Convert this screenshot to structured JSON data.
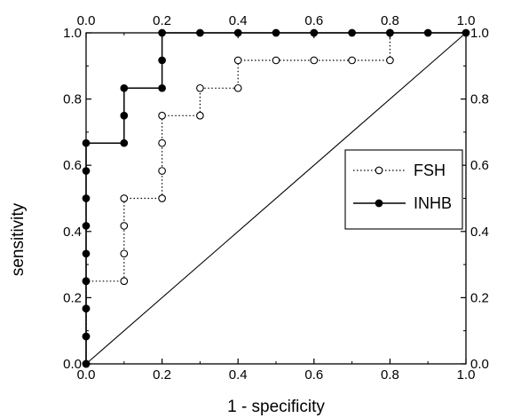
{
  "chart_data": {
    "type": "line",
    "xlabel": "1 - specificity",
    "ylabel": "sensitivity",
    "xlim": [
      0,
      1
    ],
    "ylim": [
      0,
      1
    ],
    "x_ticks": [
      "0.0",
      "0.2",
      "0.4",
      "0.6",
      "0.8",
      "1.0"
    ],
    "y_ticks": [
      "0.0",
      "0.2",
      "0.4",
      "0.6",
      "0.8",
      "1.0"
    ],
    "grid": false,
    "legend_position": "right",
    "reference_line": {
      "x": [
        0,
        1
      ],
      "y": [
        0,
        1
      ]
    },
    "series": [
      {
        "name": "FSH",
        "line_style": "dotted",
        "marker": "open-circle",
        "x": [
          0.0,
          0.0,
          0.0,
          0.0,
          0.1,
          0.1,
          0.1,
          0.1,
          0.2,
          0.2,
          0.2,
          0.2,
          0.3,
          0.3,
          0.4,
          0.4,
          0.5,
          0.6,
          0.7,
          0.8,
          0.8
        ],
        "y": [
          0.0,
          0.083,
          0.167,
          0.25,
          0.25,
          0.333,
          0.417,
          0.5,
          0.5,
          0.583,
          0.667,
          0.75,
          0.75,
          0.833,
          0.833,
          0.917,
          0.917,
          0.917,
          0.917,
          0.917,
          1.0
        ]
      },
      {
        "name": "INHB",
        "line_style": "solid",
        "marker": "filled-circle",
        "x": [
          0.0,
          0.0,
          0.0,
          0.0,
          0.0,
          0.0,
          0.0,
          0.0,
          0.0,
          0.1,
          0.1,
          0.1,
          0.2,
          0.2,
          0.2,
          0.3,
          0.4,
          0.5,
          0.6,
          0.7,
          0.8,
          0.9,
          1.0
        ],
        "y": [
          0.0,
          0.083,
          0.167,
          0.25,
          0.333,
          0.417,
          0.5,
          0.583,
          0.667,
          0.667,
          0.75,
          0.833,
          0.833,
          0.917,
          1.0,
          1.0,
          1.0,
          1.0,
          1.0,
          1.0,
          1.0,
          1.0,
          1.0
        ]
      }
    ]
  }
}
